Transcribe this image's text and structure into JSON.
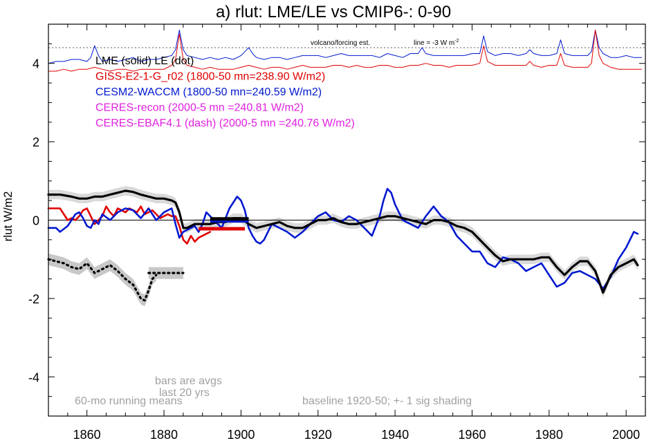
{
  "chart_data": {
    "type": "line",
    "title": "a) rlut: LME/LE vs CMIP6-: 0-90",
    "xlabel": "",
    "ylabel": "rlut W/m2",
    "xlim": [
      1850,
      2005
    ],
    "ylim": [
      -5,
      5
    ],
    "x_ticks": [
      1860,
      1880,
      1900,
      1920,
      1940,
      1960,
      1980,
      2000
    ],
    "y_ticks": [
      -4,
      -2,
      0,
      2,
      4
    ],
    "grid": false,
    "zero_line": 0,
    "legend": [
      {
        "label": "LME (solid)   LE (dot)",
        "color": "#000000"
      },
      {
        "label": "GISS-E2-1-G_r02 (1800-50 mn=238.90 W/m2)",
        "color": "#e00000"
      },
      {
        "label": "CESM2-WACCM (1800-50 mn=240.59 W/m2)",
        "color": "#0018d0"
      },
      {
        "label": "CERES-recon (2000-5 mn =240.81 W/m2)",
        "color": "#e020e0"
      },
      {
        "label": "CERES-EBAF4.1 (dash) (2000-5 mn =240.76 W/m2)",
        "color": "#e020e0"
      }
    ],
    "annotations": {
      "volcano_label": "volcano/forcing est.",
      "line_label": "line = -3 W m",
      "line_label_sup": "-2",
      "bars_label_1": "bars are avgs",
      "bars_label_2": "last 20 yrs",
      "running_means": "60-mo running means",
      "baseline": "baseline 1920-50; +- 1 sig shading"
    },
    "reference_line_y": 4.4,
    "series": [
      {
        "name": "LME (solid)",
        "color": "#000000",
        "style": "solid",
        "width": 3.2,
        "x": [
          1850,
          1853,
          1856,
          1858,
          1860,
          1862,
          1864,
          1866,
          1868,
          1870,
          1872,
          1874,
          1876,
          1878,
          1880,
          1882,
          1883,
          1884,
          1885,
          1886,
          1888,
          1890,
          1892,
          1894,
          1896,
          1898,
          1900,
          1902,
          1904,
          1906,
          1908,
          1910,
          1912,
          1914,
          1916,
          1918,
          1920,
          1922,
          1924,
          1926,
          1928,
          1930,
          1932,
          1934,
          1936,
          1938,
          1940,
          1942,
          1944,
          1946,
          1948,
          1950,
          1952,
          1954,
          1956,
          1958,
          1960,
          1962,
          1964,
          1966,
          1968,
          1970,
          1972,
          1974,
          1976,
          1978,
          1980,
          1982,
          1984,
          1986,
          1988,
          1990,
          1992,
          1994,
          1996,
          1998,
          2000,
          2002,
          2003
        ],
        "y": [
          0.65,
          0.65,
          0.6,
          0.55,
          0.55,
          0.6,
          0.6,
          0.65,
          0.7,
          0.75,
          0.72,
          0.65,
          0.6,
          0.55,
          0.55,
          0.5,
          0.45,
          0.2,
          -0.2,
          -0.2,
          -0.1,
          -0.1,
          -0.1,
          -0.05,
          -0.05,
          0.05,
          0.05,
          -0.1,
          -0.2,
          -0.15,
          -0.1,
          -0.05,
          -0.15,
          -0.2,
          -0.2,
          -0.1,
          0.0,
          0.0,
          0.05,
          -0.05,
          -0.1,
          -0.1,
          -0.05,
          0.0,
          0.05,
          0.1,
          0.1,
          0.05,
          0.0,
          -0.05,
          -0.1,
          0.0,
          0.0,
          -0.05,
          -0.15,
          -0.2,
          -0.3,
          -0.5,
          -0.7,
          -0.9,
          -1.05,
          -1.0,
          -1.0,
          -1.0,
          -1.0,
          -0.95,
          -0.95,
          -1.2,
          -1.4,
          -1.2,
          -1.05,
          -1.05,
          -1.3,
          -1.85,
          -1.4,
          -1.2,
          -1.1,
          -1.0,
          -1.15
        ]
      },
      {
        "name": "GISS-E2-1-G_r02",
        "color": "#e00000",
        "style": "solid",
        "width": 2.6,
        "x": [
          1850,
          1851,
          1852,
          1853,
          1854,
          1855,
          1856,
          1857,
          1858,
          1859,
          1860,
          1861,
          1862,
          1863,
          1864,
          1865,
          1866,
          1867,
          1868,
          1869,
          1870,
          1871,
          1872,
          1873,
          1874,
          1875,
          1876,
          1877,
          1878,
          1879,
          1880,
          1881,
          1882,
          1883,
          1884,
          1885,
          1886,
          1887,
          1888,
          1889,
          1890,
          1891,
          1892
        ],
        "y": [
          0.3,
          0.3,
          0.3,
          0.3,
          0.15,
          0.0,
          0.05,
          0.0,
          0.1,
          0.25,
          0.3,
          0.1,
          -0.1,
          0.0,
          0.1,
          0.35,
          0.2,
          0.1,
          0.3,
          0.25,
          0.2,
          0.3,
          0.25,
          0.2,
          0.35,
          0.15,
          0.2,
          0.25,
          0.15,
          0.05,
          0.1,
          0.15,
          0.1,
          0.1,
          -0.15,
          -0.5,
          -0.6,
          -0.4,
          -0.55,
          -0.45,
          -0.4,
          -0.35,
          -0.3
        ]
      },
      {
        "name": "CESM2-WACCM",
        "color": "#0018d0",
        "style": "solid",
        "width": 2.6,
        "x": [
          1850,
          1852,
          1853,
          1855,
          1856,
          1857,
          1858,
          1859,
          1860,
          1861,
          1862,
          1863,
          1864,
          1866,
          1868,
          1870,
          1872,
          1874,
          1876,
          1878,
          1880,
          1881,
          1882,
          1883,
          1884,
          1885,
          1886,
          1887,
          1888,
          1889,
          1890,
          1891,
          1892,
          1893,
          1894,
          1895,
          1896,
          1897,
          1898,
          1899,
          1900,
          1901,
          1902,
          1903,
          1904,
          1905,
          1906,
          1908,
          1910,
          1912,
          1914,
          1916,
          1918,
          1920,
          1922,
          1924,
          1926,
          1928,
          1930,
          1932,
          1934,
          1936,
          1937,
          1938,
          1939,
          1940,
          1942,
          1944,
          1946,
          1948,
          1950,
          1952,
          1954,
          1956,
          1958,
          1960,
          1962,
          1964,
          1966,
          1968,
          1970,
          1972,
          1974,
          1976,
          1978,
          1980,
          1982,
          1984,
          1986,
          1988,
          1990,
          1992,
          1994,
          1996,
          1998,
          2000,
          2002,
          2003
        ],
        "y": [
          -0.2,
          -0.2,
          -0.3,
          -0.15,
          0.0,
          0.15,
          0.2,
          0.05,
          -0.15,
          -0.2,
          0.0,
          -0.1,
          0.15,
          0.0,
          0.2,
          0.3,
          0.25,
          0.05,
          0.3,
          0.0,
          0.2,
          0.25,
          0.3,
          -0.1,
          -0.45,
          -0.3,
          -0.25,
          -0.2,
          -0.15,
          -0.3,
          -0.1,
          0.2,
          0.1,
          0.0,
          -0.1,
          -0.2,
          0.05,
          0.3,
          0.45,
          0.6,
          0.5,
          0.25,
          -0.2,
          -0.4,
          -0.55,
          -0.6,
          -0.5,
          -0.1,
          -0.2,
          -0.3,
          -0.45,
          -0.3,
          -0.1,
          0.1,
          0.2,
          0.0,
          -0.05,
          0.1,
          0.0,
          -0.2,
          -0.4,
          0.1,
          0.5,
          0.8,
          0.7,
          0.4,
          0.0,
          -0.1,
          -0.2,
          0.1,
          0.35,
          0.1,
          -0.05,
          -0.4,
          -0.6,
          -0.8,
          -0.8,
          -1.1,
          -1.2,
          -0.95,
          -1.0,
          -1.1,
          -1.3,
          -1.2,
          -1.1,
          -1.4,
          -1.7,
          -1.6,
          -1.35,
          -1.3,
          -1.4,
          -1.5,
          -1.75,
          -1.45,
          -1.0,
          -0.7,
          -0.3,
          -0.35
        ]
      },
      {
        "name": "LE (dot)",
        "color": "#000000",
        "style": "dot",
        "width": 3.2,
        "x": [
          1850,
          1852,
          1854,
          1856,
          1858,
          1860,
          1862,
          1864,
          1866,
          1868,
          1870,
          1872,
          1874,
          1875,
          1876,
          1877,
          1878
        ],
        "y": [
          -1.0,
          -1.05,
          -1.1,
          -1.2,
          -1.25,
          -1.1,
          -1.35,
          -1.25,
          -1.15,
          -1.3,
          -1.5,
          -1.65,
          -2.0,
          -2.05,
          -1.8,
          -1.5,
          -1.4
        ]
      },
      {
        "name": "LE recent (dot)",
        "color": "#000000",
        "style": "dot",
        "width": 3.2,
        "x": [
          1876,
          1885
        ],
        "y": [
          -1.35,
          -1.35
        ]
      },
      {
        "name": "CESM2-WACCM volcano/forcing",
        "color": "#0018d0",
        "style": "solid",
        "width": 1.0,
        "x": [
          1850,
          1852,
          1854,
          1856,
          1858,
          1860,
          1861,
          1862,
          1863,
          1864,
          1866,
          1868,
          1870,
          1872,
          1874,
          1876,
          1878,
          1880,
          1882,
          1883,
          1884,
          1885,
          1886,
          1888,
          1890,
          1892,
          1894,
          1896,
          1898,
          1900,
          1901,
          1902,
          1903,
          1904,
          1906,
          1908,
          1910,
          1912,
          1914,
          1916,
          1918,
          1920,
          1922,
          1924,
          1926,
          1928,
          1930,
          1932,
          1934,
          1936,
          1938,
          1940,
          1942,
          1944,
          1946,
          1947,
          1948,
          1950,
          1952,
          1954,
          1956,
          1958,
          1960,
          1962,
          1963,
          1964,
          1966,
          1968,
          1970,
          1972,
          1974,
          1975,
          1976,
          1978,
          1980,
          1982,
          1983,
          1984,
          1986,
          1988,
          1990,
          1991,
          1992,
          1993,
          1994,
          1996,
          1998,
          2000,
          2002,
          2004
        ],
        "y": [
          4.0,
          4.05,
          4.05,
          4.1,
          4.1,
          4.05,
          4.15,
          4.45,
          4.2,
          4.05,
          4.1,
          4.05,
          4.1,
          4.15,
          4.05,
          4.1,
          4.1,
          4.15,
          4.2,
          4.35,
          4.85,
          4.35,
          4.2,
          4.15,
          4.1,
          4.15,
          4.1,
          4.15,
          4.1,
          4.2,
          4.3,
          4.4,
          4.25,
          4.15,
          4.1,
          4.15,
          4.15,
          4.1,
          4.15,
          4.2,
          4.2,
          4.2,
          4.15,
          4.2,
          4.25,
          4.2,
          4.2,
          4.2,
          4.2,
          4.15,
          4.25,
          4.2,
          4.15,
          4.25,
          4.25,
          4.4,
          4.25,
          4.2,
          4.2,
          4.2,
          4.2,
          4.2,
          4.25,
          4.25,
          4.7,
          4.3,
          4.2,
          4.25,
          4.25,
          4.2,
          4.25,
          4.35,
          4.25,
          4.2,
          4.2,
          4.25,
          4.6,
          4.25,
          4.2,
          4.2,
          4.2,
          4.3,
          4.85,
          4.4,
          4.25,
          4.15,
          4.15,
          4.2,
          4.15,
          4.15
        ]
      },
      {
        "name": "GISS-E2-1-G_r02 volcano/forcing",
        "color": "#e00000",
        "style": "solid",
        "width": 1.0,
        "x": [
          1850,
          1852,
          1854,
          1856,
          1858,
          1860,
          1862,
          1864,
          1866,
          1868,
          1870,
          1872,
          1874,
          1876,
          1878,
          1880,
          1882,
          1883,
          1884,
          1885,
          1886,
          1888,
          1890,
          1892,
          1894,
          1896,
          1898,
          1900,
          1902,
          1904,
          1906,
          1908,
          1910,
          1912,
          1914,
          1916,
          1918,
          1920,
          1922,
          1924,
          1926,
          1928,
          1930,
          1932,
          1934,
          1936,
          1938,
          1940,
          1942,
          1944,
          1946,
          1948,
          1950,
          1952,
          1954,
          1956,
          1958,
          1960,
          1962,
          1963,
          1964,
          1966,
          1968,
          1970,
          1972,
          1974,
          1975,
          1976,
          1978,
          1980,
          1982,
          1983,
          1984,
          1986,
          1988,
          1990,
          1991,
          1992,
          1993,
          1994,
          1996,
          1998,
          2000,
          2002,
          2004
        ],
        "y": [
          3.8,
          3.8,
          3.85,
          3.8,
          3.85,
          3.85,
          3.9,
          3.85,
          3.8,
          3.85,
          3.85,
          3.8,
          3.85,
          3.85,
          3.85,
          3.85,
          3.95,
          4.1,
          4.75,
          4.1,
          3.95,
          3.9,
          3.85,
          3.9,
          3.85,
          3.85,
          3.85,
          3.9,
          3.95,
          3.9,
          3.85,
          3.9,
          3.9,
          3.85,
          3.9,
          3.95,
          3.9,
          3.9,
          3.9,
          3.95,
          3.95,
          3.9,
          3.95,
          3.9,
          3.9,
          3.95,
          3.95,
          3.9,
          3.9,
          3.95,
          3.95,
          4.0,
          3.95,
          3.95,
          3.9,
          3.95,
          3.95,
          3.95,
          4.0,
          4.45,
          4.05,
          3.95,
          3.95,
          3.95,
          3.95,
          3.95,
          4.05,
          3.95,
          3.9,
          3.95,
          3.95,
          4.25,
          3.95,
          3.9,
          3.9,
          3.9,
          4.0,
          4.85,
          4.2,
          4.0,
          3.9,
          3.85,
          3.85,
          3.85,
          3.85
        ]
      }
    ],
    "shading": [
      {
        "name": "LME +- 1 sig",
        "color": "#d9d9d9",
        "series": "LME (solid)",
        "half_width": 0.12
      },
      {
        "name": "LE +- 1 sig",
        "color": "#c8c8c8",
        "series": "LE (dot)",
        "half_width": 0.15
      },
      {
        "name": "LE recent +- 1 sig",
        "color": "#c8c8c8",
        "series": "LE recent (dot)",
        "half_width": 0.15
      }
    ],
    "bars": [
      {
        "color": "#0018d0",
        "x0": 1892,
        "x1": 1902,
        "y": -0.02
      },
      {
        "color": "#000000",
        "x0": 1892,
        "x1": 1902,
        "y": 0.03
      },
      {
        "color": "#e00000",
        "x0": 1889,
        "x1": 1901,
        "y": -0.22
      }
    ]
  }
}
